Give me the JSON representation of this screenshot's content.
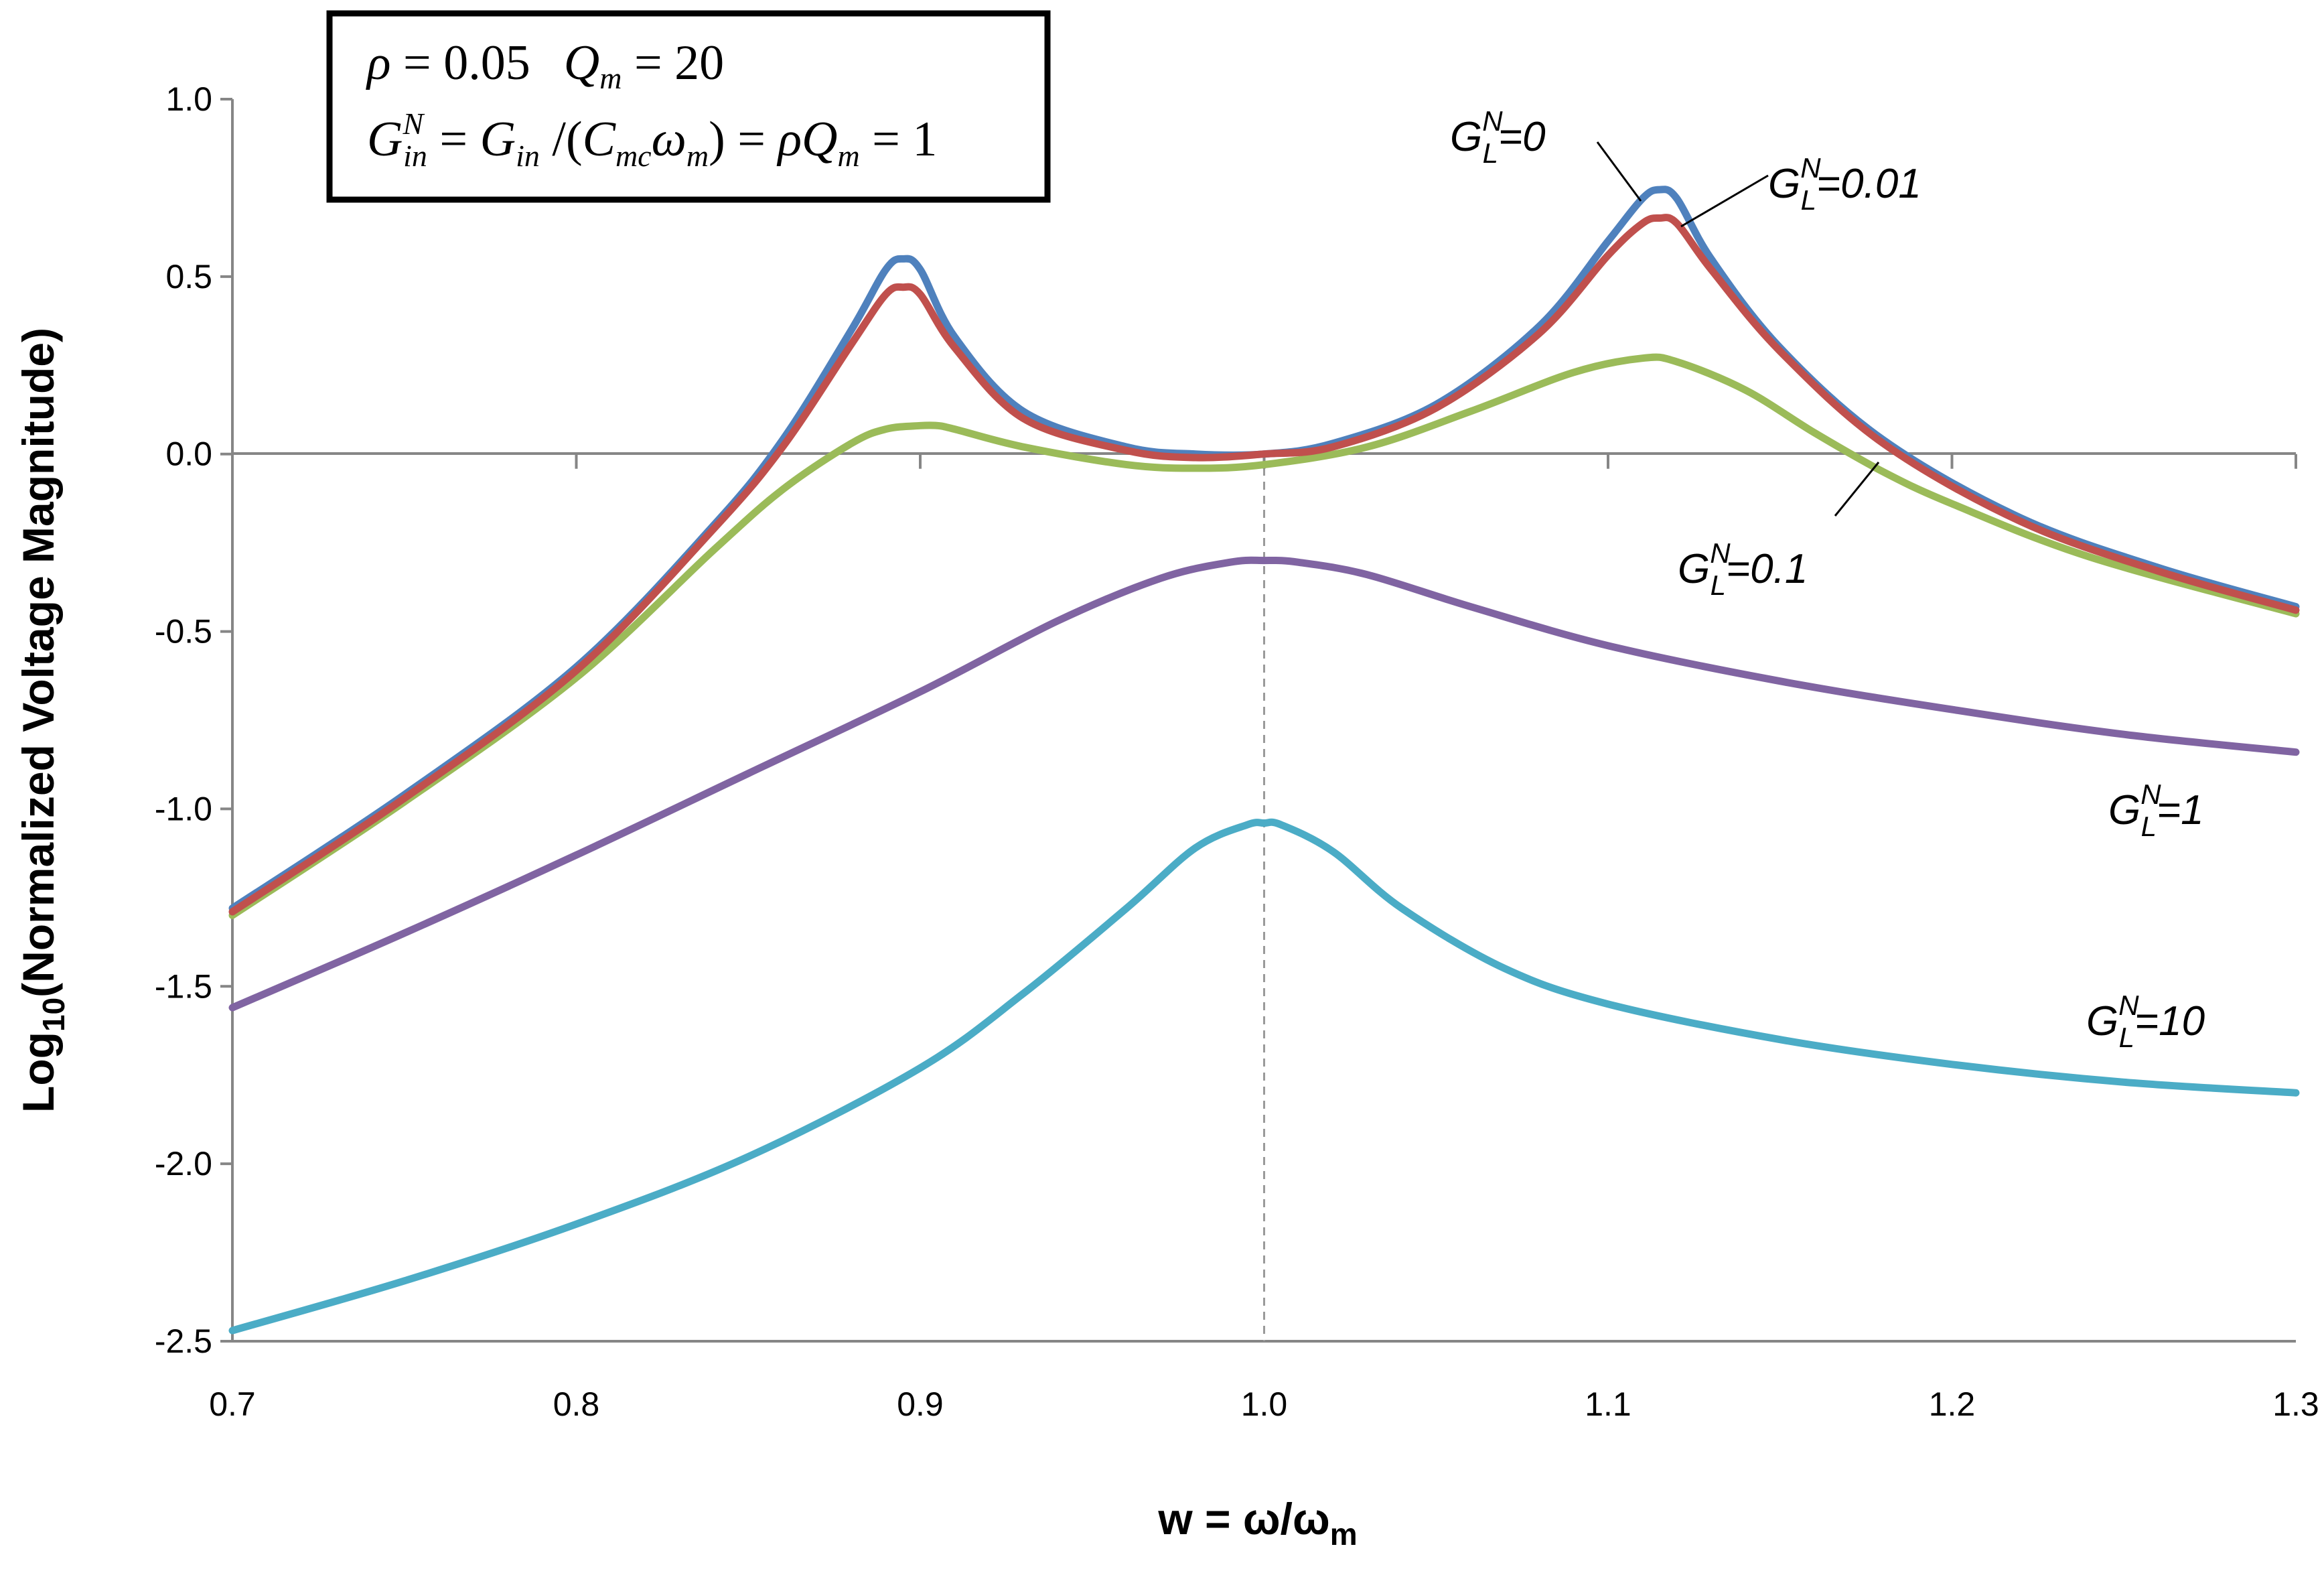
{
  "chart_data": {
    "type": "line",
    "title": "",
    "xlabel": "w = ω/ω",
    "xlabel_sub": "m",
    "ylabel_prefix": "Log",
    "ylabel_sub": "10",
    "ylabel_rest": "(Normalized Voltage Magnitude)",
    "xlim": [
      0.7,
      1.3
    ],
    "ylim": [
      -2.5,
      1.0
    ],
    "x_ticks": [
      0.7,
      0.8,
      0.9,
      1.0,
      1.1,
      1.2,
      1.3
    ],
    "x_tick_labels": [
      "0.7",
      "0.8",
      "0.9",
      "1.0",
      "1.1",
      "1.2",
      "1.3"
    ],
    "y_ticks": [
      1.0,
      0.5,
      0.0,
      -0.5,
      -1.0,
      -1.5,
      -2.0,
      -2.5
    ],
    "y_tick_labels": [
      "1.0",
      "0.5",
      "0.0",
      "-0.5",
      "-1.0",
      "-1.5",
      "-2.0",
      "-2.5"
    ],
    "reference_line_x": 1.0,
    "series": [
      {
        "name": "G_L^N=0",
        "color": "#4F81BD",
        "x": [
          0.7,
          0.75,
          0.8,
          0.84,
          0.86,
          0.88,
          0.89,
          0.895,
          0.9,
          0.91,
          0.93,
          0.96,
          0.98,
          1.0,
          1.02,
          1.05,
          1.08,
          1.1,
          1.11,
          1.115,
          1.12,
          1.13,
          1.15,
          1.18,
          1.22,
          1.26,
          1.3
        ],
        "values": [
          -1.28,
          -0.96,
          -0.6,
          -0.2,
          0.04,
          0.35,
          0.52,
          0.55,
          0.52,
          0.33,
          0.12,
          0.02,
          0.0,
          0.0,
          0.03,
          0.14,
          0.36,
          0.6,
          0.72,
          0.745,
          0.72,
          0.55,
          0.3,
          0.04,
          -0.18,
          -0.32,
          -0.43
        ]
      },
      {
        "name": "G_L^N=0.01",
        "color": "#C0504D",
        "x": [
          0.7,
          0.75,
          0.8,
          0.84,
          0.86,
          0.88,
          0.89,
          0.895,
          0.9,
          0.91,
          0.93,
          0.96,
          0.98,
          1.0,
          1.02,
          1.05,
          1.08,
          1.1,
          1.11,
          1.115,
          1.12,
          1.13,
          1.15,
          1.18,
          1.22,
          1.26,
          1.3
        ],
        "values": [
          -1.29,
          -0.97,
          -0.61,
          -0.21,
          0.02,
          0.31,
          0.45,
          0.47,
          0.45,
          0.3,
          0.1,
          0.01,
          -0.01,
          0.0,
          0.02,
          0.13,
          0.34,
          0.56,
          0.65,
          0.665,
          0.65,
          0.52,
          0.29,
          0.03,
          -0.19,
          -0.33,
          -0.44
        ]
      },
      {
        "name": "G_L^N=0.1",
        "color": "#9BBB59",
        "x": [
          0.7,
          0.75,
          0.8,
          0.84,
          0.86,
          0.88,
          0.89,
          0.9,
          0.905,
          0.91,
          0.93,
          0.96,
          0.98,
          1.0,
          1.03,
          1.06,
          1.09,
          1.11,
          1.12,
          1.14,
          1.16,
          1.18,
          1.2,
          1.24,
          1.3
        ],
        "values": [
          -1.3,
          -0.98,
          -0.63,
          -0.27,
          -0.1,
          0.03,
          0.07,
          0.08,
          0.08,
          0.07,
          0.02,
          -0.03,
          -0.04,
          -0.03,
          0.02,
          0.12,
          0.23,
          0.27,
          0.26,
          0.18,
          0.06,
          -0.05,
          -0.14,
          -0.29,
          -0.45
        ]
      },
      {
        "name": "G_L^N=1",
        "color": "#8064A2",
        "x": [
          0.7,
          0.75,
          0.8,
          0.85,
          0.9,
          0.94,
          0.97,
          0.99,
          1.0,
          1.01,
          1.03,
          1.06,
          1.1,
          1.15,
          1.2,
          1.25,
          1.3
        ],
        "values": [
          -1.56,
          -1.35,
          -1.13,
          -0.9,
          -0.67,
          -0.47,
          -0.35,
          -0.305,
          -0.3,
          -0.305,
          -0.34,
          -0.43,
          -0.54,
          -0.64,
          -0.72,
          -0.79,
          -0.84
        ]
      },
      {
        "name": "G_L^N=10",
        "color": "#4BACC6",
        "x": [
          0.7,
          0.75,
          0.8,
          0.85,
          0.9,
          0.93,
          0.96,
          0.98,
          0.995,
          1.0,
          1.005,
          1.02,
          1.04,
          1.07,
          1.1,
          1.15,
          1.2,
          1.25,
          1.3
        ],
        "values": [
          -2.47,
          -2.33,
          -2.17,
          -1.98,
          -1.73,
          -1.52,
          -1.28,
          -1.11,
          -1.045,
          -1.04,
          -1.045,
          -1.12,
          -1.28,
          -1.45,
          -1.55,
          -1.65,
          -1.72,
          -1.77,
          -1.8
        ]
      }
    ],
    "annotations": {
      "g0": {
        "main": "G",
        "sub": "L",
        "sup": "N",
        "tail": "=0"
      },
      "g001": {
        "main": "G",
        "sub": "L",
        "sup": "N",
        "tail": "=0.01"
      },
      "g01": {
        "main": "G",
        "sub": "L",
        "sup": "N",
        "tail": "=0.1"
      },
      "g1": {
        "main": "G",
        "sub": "L",
        "sup": "N",
        "tail": "=1"
      },
      "g10": {
        "main": "G",
        "sub": "L",
        "sup": "N",
        "tail": "=10"
      }
    },
    "infobox": {
      "line1": {
        "rho": "ρ",
        "rho_eq": " = 0.05",
        "q": "Q",
        "q_sub": "m",
        "q_eq": " = 20"
      },
      "line2": {
        "g": "G",
        "g_sub": "in",
        "g_sup": "N",
        "eq1": " = ",
        "g2": "G",
        "g2_sub": "in",
        "slash": " /(",
        "c": "C",
        "c_sub": "mc",
        "omega": "ω",
        "omega_sub": "m",
        "close": ") = ",
        "rhoq": "ρQ",
        "rhoq_sub": "m",
        "end": " = 1"
      }
    }
  }
}
